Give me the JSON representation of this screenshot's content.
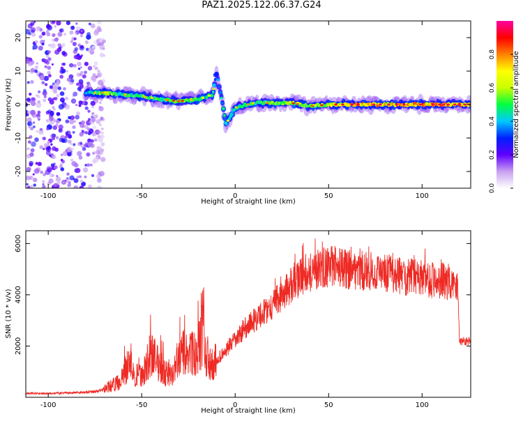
{
  "title": "PAZ1.2025.122.06.37.G24",
  "chart_data": [
    {
      "type": "heatmap",
      "title": "PAZ1.2025.122.06.37.G24",
      "xlabel": "Height of straight line (km)",
      "ylabel": "Frequency (Hz)",
      "xlim": [
        -112,
        126
      ],
      "ylim": [
        -25,
        25
      ],
      "x_ticks": [
        -100,
        -50,
        0,
        50,
        100
      ],
      "y_ticks": [
        -20,
        -10,
        0,
        10,
        20
      ],
      "colorbar": {
        "label": "Normalized spectral amplitude",
        "range": [
          0.0,
          1.0
        ],
        "ticks": [
          0.0,
          0.2,
          0.4,
          0.6,
          0.8
        ],
        "colormap": [
          "#ffffff",
          "#c8a0f0",
          "#6000ff",
          "#0020ff",
          "#00c8ff",
          "#00ff40",
          "#c8ff00",
          "#ffff00",
          "#ff8000",
          "#ff0000",
          "#ff00a0"
        ]
      },
      "description_points": {
        "noise_region_x": [
          -112,
          -70
        ],
        "noise_amplitude": 0.25,
        "track": [
          {
            "x": -80,
            "freq": 3.5,
            "amp": 0.35
          },
          {
            "x": -70,
            "freq": 3.5,
            "amp": 0.6
          },
          {
            "x": -60,
            "freq": 3.0,
            "amp": 0.5
          },
          {
            "x": -50,
            "freq": 2.5,
            "amp": 0.55
          },
          {
            "x": -40,
            "freq": 1.5,
            "amp": 0.5
          },
          {
            "x": -30,
            "freq": 1.0,
            "amp": 0.6
          },
          {
            "x": -20,
            "freq": 1.5,
            "amp": 0.5
          },
          {
            "x": -12,
            "freq": 3.0,
            "amp": 0.45
          },
          {
            "x": -10,
            "freq": 10.0,
            "amp": 0.35
          },
          {
            "x": -6,
            "freq": -2.0,
            "amp": 0.45
          },
          {
            "x": -5,
            "freq": -6.0,
            "amp": 0.4
          },
          {
            "x": 0,
            "freq": -1.0,
            "amp": 0.5
          },
          {
            "x": 10,
            "freq": 0.5,
            "amp": 0.5
          },
          {
            "x": 20,
            "freq": 0.5,
            "amp": 0.55
          },
          {
            "x": 30,
            "freq": 0.5,
            "amp": 0.6
          },
          {
            "x": 40,
            "freq": -0.5,
            "amp": 0.6
          },
          {
            "x": 50,
            "freq": 0.0,
            "amp": 0.65
          },
          {
            "x": 60,
            "freq": 0.0,
            "amp": 0.75
          },
          {
            "x": 70,
            "freq": 0.0,
            "amp": 0.8
          },
          {
            "x": 80,
            "freq": 0.0,
            "amp": 0.75
          },
          {
            "x": 90,
            "freq": 0.0,
            "amp": 0.8
          },
          {
            "x": 100,
            "freq": 0.0,
            "amp": 0.8
          },
          {
            "x": 110,
            "freq": 0.0,
            "amp": 0.8
          },
          {
            "x": 120,
            "freq": 0.0,
            "amp": 0.8
          },
          {
            "x": 126,
            "freq": 0.0,
            "amp": 0.7
          }
        ]
      }
    },
    {
      "type": "line",
      "xlabel": "Height of straight line (km)",
      "ylabel": "SNR (10 * v/v)",
      "xlim": [
        -112,
        126
      ],
      "ylim": [
        0,
        6500
      ],
      "x_ticks": [
        -100,
        -50,
        0,
        50,
        100
      ],
      "y_ticks": [
        2000,
        4000,
        6000
      ],
      "series": [
        {
          "color": "#ee2a24",
          "x": [
            -112,
            -100,
            -90,
            -80,
            -72,
            -68,
            -65,
            -62,
            -60,
            -58,
            -56,
            -54,
            -52,
            -50,
            -48,
            -46,
            -44,
            -42,
            -40,
            -38,
            -36,
            -34,
            -32,
            -30,
            -28,
            -26,
            -24,
            -22,
            -20,
            -18,
            -17,
            -16,
            -14,
            -12,
            -10,
            -8,
            -6,
            -4,
            -2,
            0,
            5,
            10,
            15,
            20,
            25,
            30,
            35,
            40,
            45,
            50,
            55,
            60,
            65,
            70,
            75,
            80,
            85,
            90,
            95,
            100,
            105,
            110,
            115,
            118,
            119,
            120,
            126
          ],
          "y": [
            150,
            150,
            170,
            200,
            250,
            400,
            500,
            600,
            800,
            1200,
            1400,
            700,
            900,
            800,
            1200,
            1500,
            1600,
            1400,
            1200,
            1000,
            900,
            800,
            1200,
            1500,
            1700,
            1700,
            1800,
            1500,
            1700,
            2400,
            3000,
            1800,
            1200,
            1300,
            1400,
            1600,
            1700,
            1900,
            2100,
            2200,
            2700,
            3000,
            3300,
            3600,
            4000,
            4300,
            4700,
            4900,
            5000,
            5100,
            5100,
            5000,
            5000,
            4900,
            4900,
            4800,
            4800,
            4700,
            4700,
            4650,
            4600,
            4550,
            4500,
            4500,
            4400,
            2200,
            2200
          ]
        }
      ]
    }
  ]
}
